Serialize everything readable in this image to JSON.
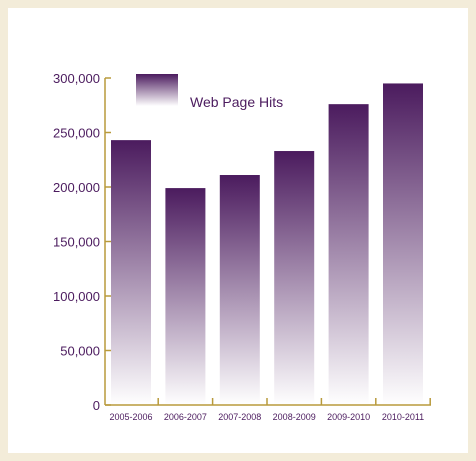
{
  "chart_data": {
    "type": "bar",
    "categories": [
      "2005-2006",
      "2006-2007",
      "2007-2008",
      "2008-2009",
      "2009-2010",
      "2010-2011"
    ],
    "series": [
      {
        "name": "Web Page Hits",
        "values": [
          243000,
          199000,
          211000,
          233000,
          276000,
          295000
        ]
      }
    ],
    "ylim": [
      0,
      300000
    ],
    "yticks": [
      0,
      50000,
      100000,
      150000,
      200000,
      250000,
      300000
    ],
    "ytick_labels": [
      "0",
      "50,000",
      "100,000",
      "150,000",
      "200,000",
      "250,000",
      "300,000"
    ],
    "legend": {
      "label": "Web Page Hits",
      "position": "top-left"
    },
    "grid": false,
    "colors": {
      "bar_top": "#4b1b5e",
      "bar_bottom": "#ffffff",
      "axis": "#b89a3c",
      "text": "#4b1b5e"
    }
  }
}
